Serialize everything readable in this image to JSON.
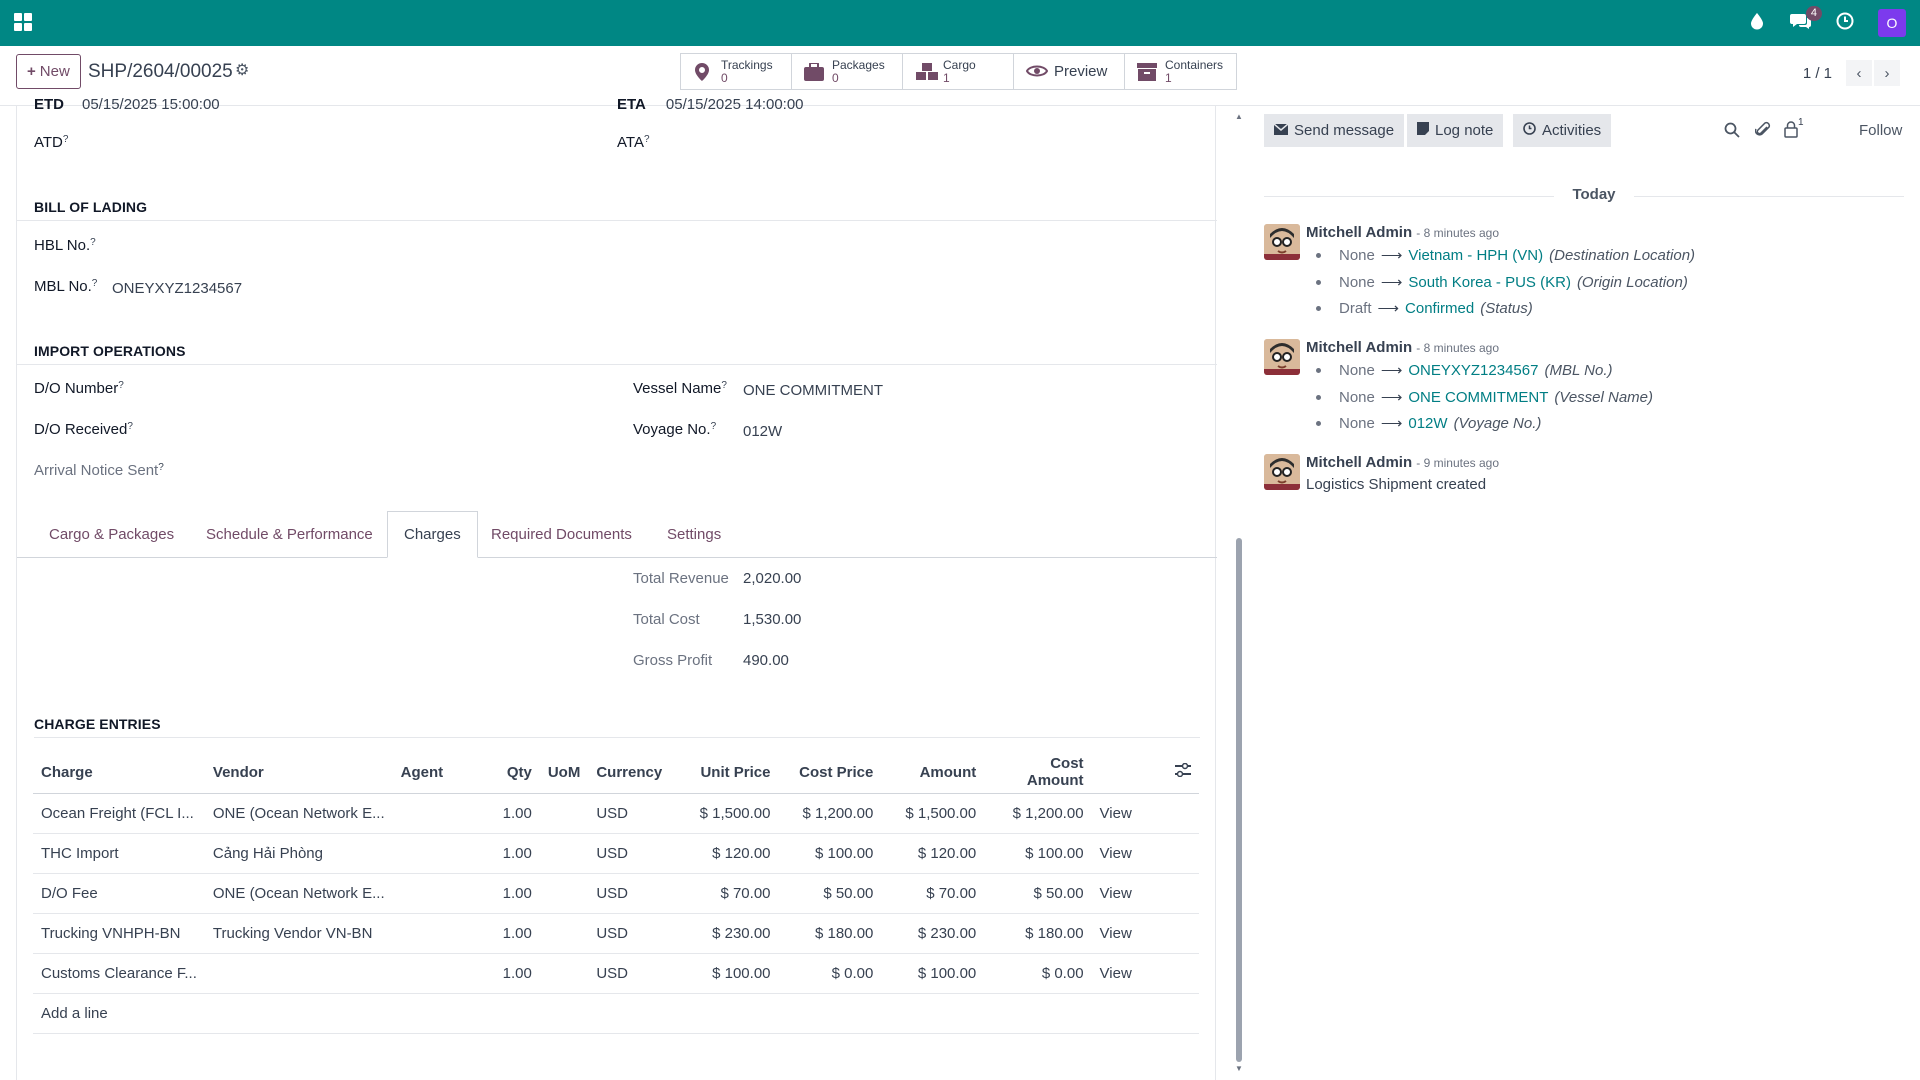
{
  "topbar": {
    "messages_badge": "4",
    "user_initial": "O"
  },
  "control": {
    "new_label": "New",
    "record_title": "SHP/2604/00025",
    "smart_buttons": [
      {
        "label": "Trackings",
        "value": "0"
      },
      {
        "label": "Packages",
        "value": "0"
      },
      {
        "label": "Cargo",
        "value": "1"
      },
      {
        "label": "Preview",
        "value": ""
      },
      {
        "label": "Containers",
        "value": "1"
      }
    ],
    "pager": "1 / 1"
  },
  "form": {
    "etd_label": "ETD",
    "etd_value": "05/15/2025 15:00:00",
    "eta_label": "ETA",
    "eta_value": "05/15/2025 14:00:00",
    "atd_label": "ATD",
    "ata_label": "ATA",
    "bol_title": "BILL OF LADING",
    "hbl_label": "HBL No.",
    "mbl_label": "MBL No.",
    "mbl_value": "ONEYXYZ1234567",
    "import_title": "IMPORT OPERATIONS",
    "do_number_label": "D/O Number",
    "do_received_label": "D/O Received",
    "arrival_notice_label": "Arrival Notice Sent",
    "vessel_label": "Vessel Name",
    "vessel_value": "ONE COMMITMENT",
    "voyage_label": "Voyage No.",
    "voyage_value": "012W",
    "help_mark": "?"
  },
  "tabs": [
    "Cargo & Packages",
    "Schedule & Performance",
    "Charges",
    "Required Documents",
    "Settings"
  ],
  "totals": {
    "revenue_label": "Total Revenue",
    "revenue_value": "2,020.00",
    "cost_label": "Total Cost",
    "cost_value": "1,530.00",
    "profit_label": "Gross Profit",
    "profit_value": "490.00"
  },
  "charges": {
    "title": "CHARGE ENTRIES",
    "headers": [
      "Charge",
      "Vendor",
      "Agent",
      "Qty",
      "UoM",
      "Currency",
      "Unit Price",
      "Cost Price",
      "Amount",
      "Cost Amount"
    ],
    "rows": [
      {
        "charge": "Ocean Freight (FCL I...",
        "vendor": "ONE (Ocean Network E...",
        "agent": "",
        "qty": "1.00",
        "uom": "",
        "currency": "USD",
        "unit": "$ 1,500.00",
        "cost": "$ 1,200.00",
        "amount": "$ 1,500.00",
        "cost_amount": "$ 1,200.00",
        "action": "View"
      },
      {
        "charge": "THC Import",
        "vendor": "Cảng Hải Phòng",
        "agent": "",
        "qty": "1.00",
        "uom": "",
        "currency": "USD",
        "unit": "$ 120.00",
        "cost": "$ 100.00",
        "amount": "$ 120.00",
        "cost_amount": "$ 100.00",
        "action": "View"
      },
      {
        "charge": "D/O Fee",
        "vendor": "ONE (Ocean Network E...",
        "agent": "",
        "qty": "1.00",
        "uom": "",
        "currency": "USD",
        "unit": "$ 70.00",
        "cost": "$ 50.00",
        "amount": "$ 70.00",
        "cost_amount": "$ 50.00",
        "action": "View"
      },
      {
        "charge": "Trucking VNHPH-BN",
        "vendor": "Trucking Vendor VN-BN",
        "agent": "",
        "qty": "1.00",
        "uom": "",
        "currency": "USD",
        "unit": "$ 230.00",
        "cost": "$ 180.00",
        "amount": "$ 230.00",
        "cost_amount": "$ 180.00",
        "action": "View"
      },
      {
        "charge": "Customs Clearance F...",
        "vendor": "",
        "agent": "",
        "qty": "1.00",
        "uom": "",
        "currency": "USD",
        "unit": "$ 100.00",
        "cost": "$ 0.00",
        "amount": "$ 100.00",
        "cost_amount": "$ 0.00",
        "action": "View"
      }
    ],
    "add_line": "Add a line"
  },
  "chatter": {
    "send_message": "Send message",
    "log_note": "Log note",
    "activities": "Activities",
    "followers_count": "1",
    "follow": "Follow",
    "today": "Today",
    "messages": [
      {
        "author": "Mitchell Admin",
        "ago": "- 8 minutes ago",
        "changes": [
          {
            "old": "None",
            "new": "Vietnam - HPH (VN)",
            "field": "(Destination Location)"
          },
          {
            "old": "None",
            "new": "South Korea - PUS (KR)",
            "field": "(Origin Location)"
          },
          {
            "old": "Draft",
            "new": "Confirmed",
            "field": "(Status)"
          }
        ]
      },
      {
        "author": "Mitchell Admin",
        "ago": "- 8 minutes ago",
        "changes": [
          {
            "old": "None",
            "new": "ONEYXYZ1234567",
            "field": "(MBL No.)"
          },
          {
            "old": "None",
            "new": "ONE COMMITMENT",
            "field": "(Vessel Name)"
          },
          {
            "old": "None",
            "new": "012W",
            "field": "(Voyage No.)"
          }
        ]
      },
      {
        "author": "Mitchell Admin",
        "ago": "- 9 minutes ago",
        "body": "Logistics Shipment created"
      }
    ]
  },
  "colors": {
    "brand": "#008784",
    "accent": "#714b67",
    "link": "#017e84"
  }
}
